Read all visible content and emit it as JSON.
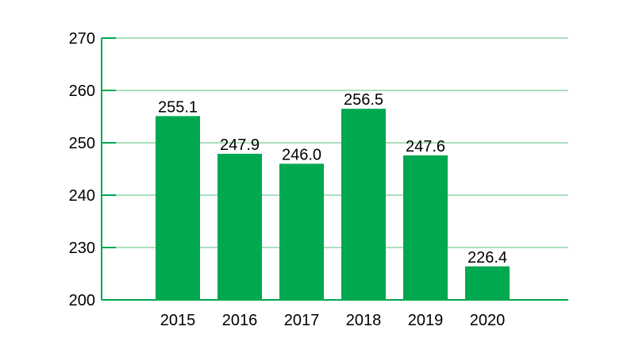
{
  "chart_data": {
    "type": "bar",
    "categories": [
      "2015",
      "2016",
      "2017",
      "2018",
      "2019",
      "2020"
    ],
    "values": [
      255.1,
      247.9,
      246.0,
      256.5,
      247.6,
      226.4
    ],
    "value_labels": [
      "255.1",
      "247.9",
      "246.0",
      "256.5",
      "247.6",
      "226.4"
    ],
    "yticks": [
      200,
      230,
      240,
      250,
      260,
      270
    ],
    "ylim": [
      220,
      270
    ],
    "axis_break": {
      "shown_as": 200,
      "actual_floor": 220
    },
    "grid": true,
    "title": "",
    "xlabel": "",
    "ylabel": "",
    "colors": {
      "bar": "#00a84f",
      "grid": "#8fd6a8",
      "axis": "#00a84f"
    }
  }
}
